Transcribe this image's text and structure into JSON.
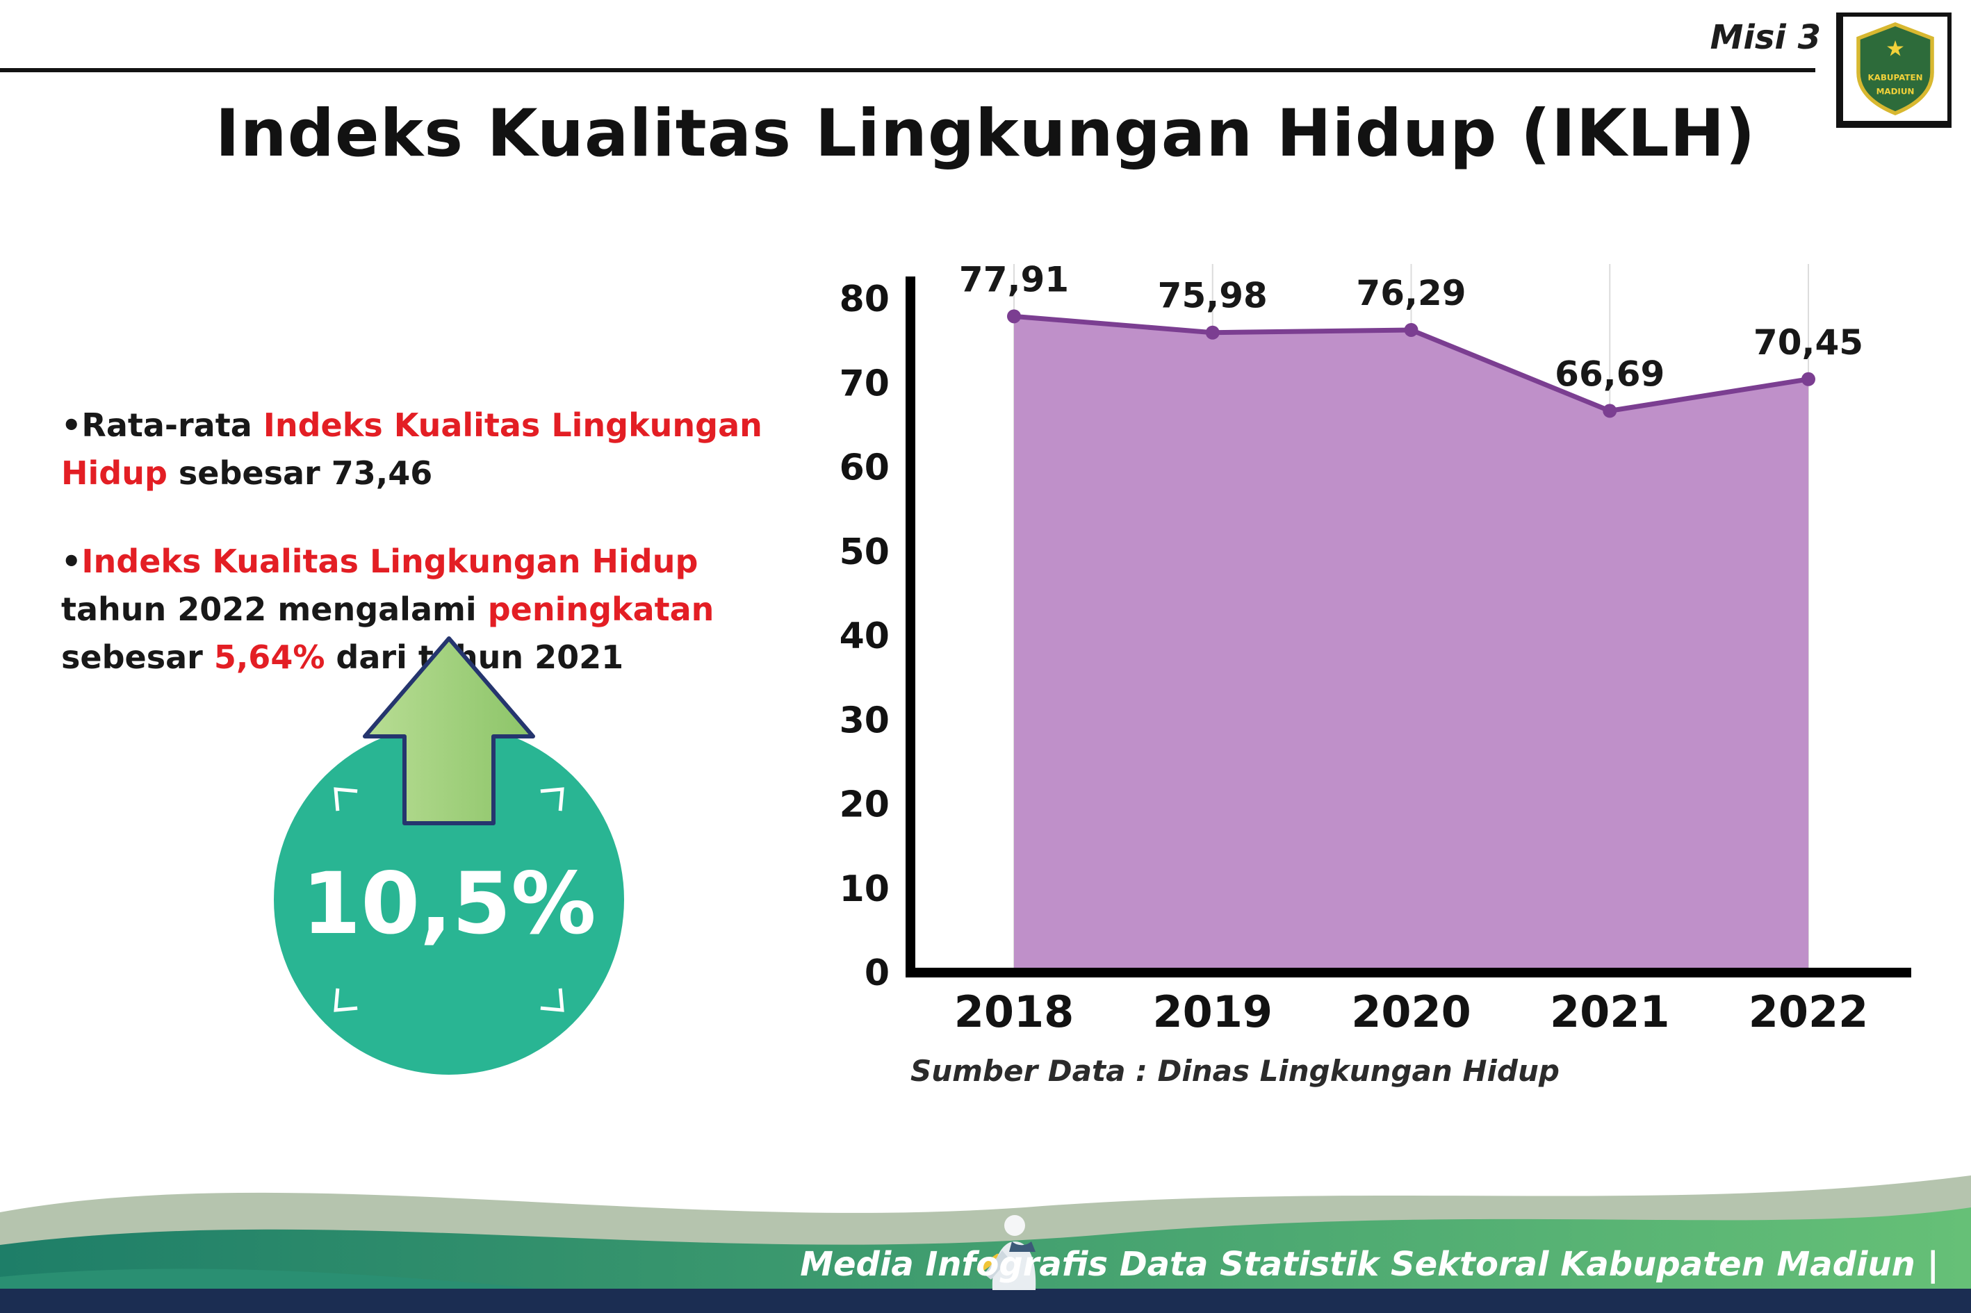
{
  "header": {
    "misi": "Misi 3",
    "title": "Indeks Kualitas Lingkungan Hidup (IKLH)",
    "logo_top": "KABUPATEN",
    "logo_bottom": "MADIUN"
  },
  "bullets": {
    "marker": "•",
    "b1": {
      "pre": "Rata-rata ",
      "red": "Indeks Kualitas Lingkungan Hidup",
      "post": " sebesar 73,46"
    },
    "b2": {
      "red1": "Indeks Kualitas Lingkungan Hidup",
      "mid1": " tahun 2022 mengalami ",
      "red2": "peningkatan",
      "mid2": " sebesar ",
      "red3": "5,64%",
      "post": " dari tahun 2021"
    }
  },
  "badge": {
    "value": "10,5%"
  },
  "chart": {
    "source": "Sumber Data : Dinas Lingkungan Hidup"
  },
  "chart_data": {
    "type": "area",
    "categories": [
      "2018",
      "2019",
      "2020",
      "2021",
      "2022"
    ],
    "values": [
      77.91,
      75.98,
      76.29,
      66.69,
      70.45
    ],
    "labels": [
      "77,91",
      "75,98",
      "76,29",
      "66,69",
      "70,45"
    ],
    "title": "Indeks Kualitas Lingkungan Hidup (IKLH)",
    "xlabel": "",
    "ylabel": "",
    "ylim": [
      0,
      80
    ],
    "yticks": [
      0,
      10,
      20,
      30,
      40,
      50,
      60,
      70,
      80
    ],
    "grid": "vertical-light",
    "legend": "none"
  },
  "footer": {
    "credit": "Media Infografis Data Statistik Sektoral Kabupaten Madiun |"
  },
  "colors": {
    "accent_red": "#e31e24",
    "area_fill": "#bf90c9",
    "line": "#7b3e91",
    "grid": "#dcdcdc",
    "axis": "#000000",
    "badge_teal": "#29b593",
    "arrow_green_light": "#b8dd94",
    "arrow_green_dark": "#8cc468",
    "arrow_outline": "#25356e",
    "wave_sage": "#b5c4ae",
    "wave_teal_left": "#1e7e68",
    "wave_teal_right": "#66c077",
    "bottom_bar_navy": "#1b2d52"
  }
}
